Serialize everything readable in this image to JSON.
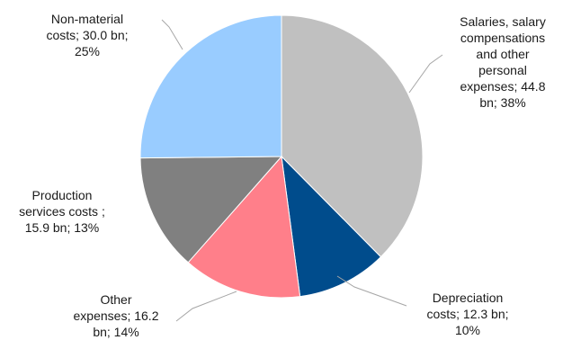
{
  "chart_data": {
    "type": "pie",
    "unit": "bn",
    "slices": [
      {
        "lines": [
          "Salaries, salary",
          "compensations",
          "and other",
          "personal",
          "expenses; 44.8",
          "bn; 38%"
        ],
        "value": 44.8,
        "percent": 38,
        "color": "#c0c0c0"
      },
      {
        "lines": [
          "Depreciation",
          "costs; 12.3 bn;",
          "10%"
        ],
        "value": 12.3,
        "percent": 10,
        "color": "#004c8c"
      },
      {
        "lines": [
          "Other",
          "expenses; 16.2",
          "bn; 14%"
        ],
        "value": 16.2,
        "percent": 14,
        "color": "#ff7f8a"
      },
      {
        "lines": [
          "Production",
          "services costs ;",
          "15.9 bn; 13%"
        ],
        "value": 15.9,
        "percent": 13,
        "color": "#808080"
      },
      {
        "lines": [
          "Non-material",
          "costs; 30.0 bn;",
          "25%"
        ],
        "value": 30.0,
        "percent": 25,
        "color": "#99ccff"
      }
    ]
  }
}
